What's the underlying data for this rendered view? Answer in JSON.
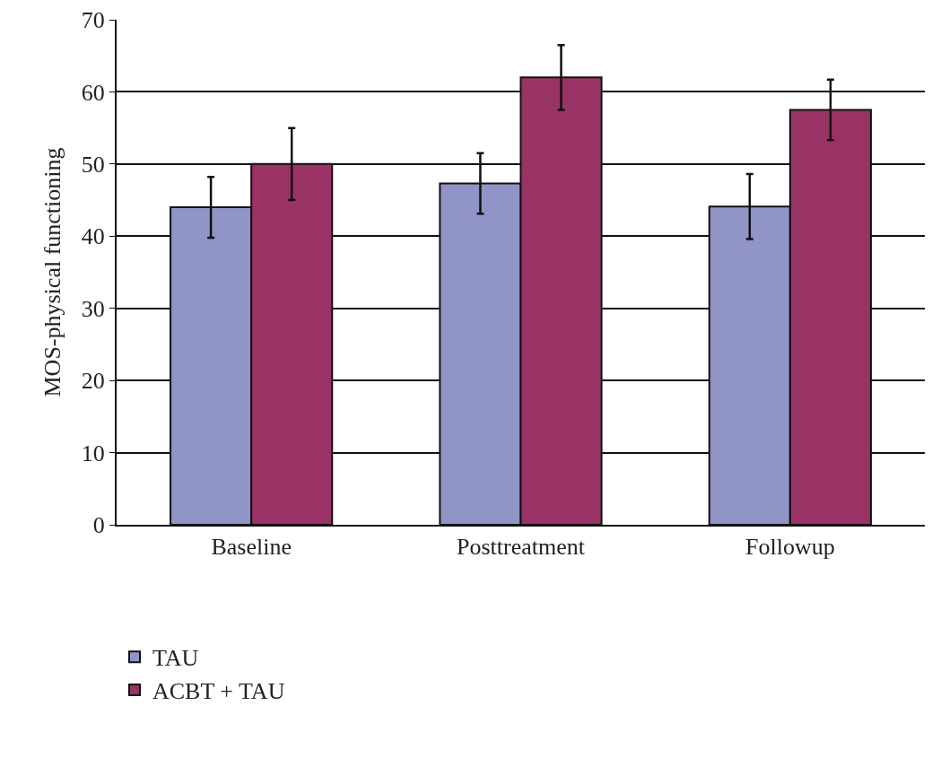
{
  "chart_data": {
    "type": "bar",
    "ylabel": "MOS-physical functioning",
    "categories": [
      "Baseline",
      "Posttreatment",
      "Followup"
    ],
    "series": [
      {
        "name": "TAU",
        "color": "#9094c6",
        "values": [
          44,
          47.3,
          44.1
        ],
        "errors": [
          4.2,
          4.2,
          4.5
        ]
      },
      {
        "name": "ACBT + TAU",
        "color": "#993366",
        "values": [
          50,
          62,
          57.5
        ],
        "errors": [
          5,
          4.5,
          4.2
        ]
      }
    ],
    "ylim": [
      0,
      70
    ],
    "yticks": [
      0,
      10,
      20,
      30,
      40,
      50,
      60,
      70
    ],
    "grid": "y",
    "legend": "bottom left"
  }
}
